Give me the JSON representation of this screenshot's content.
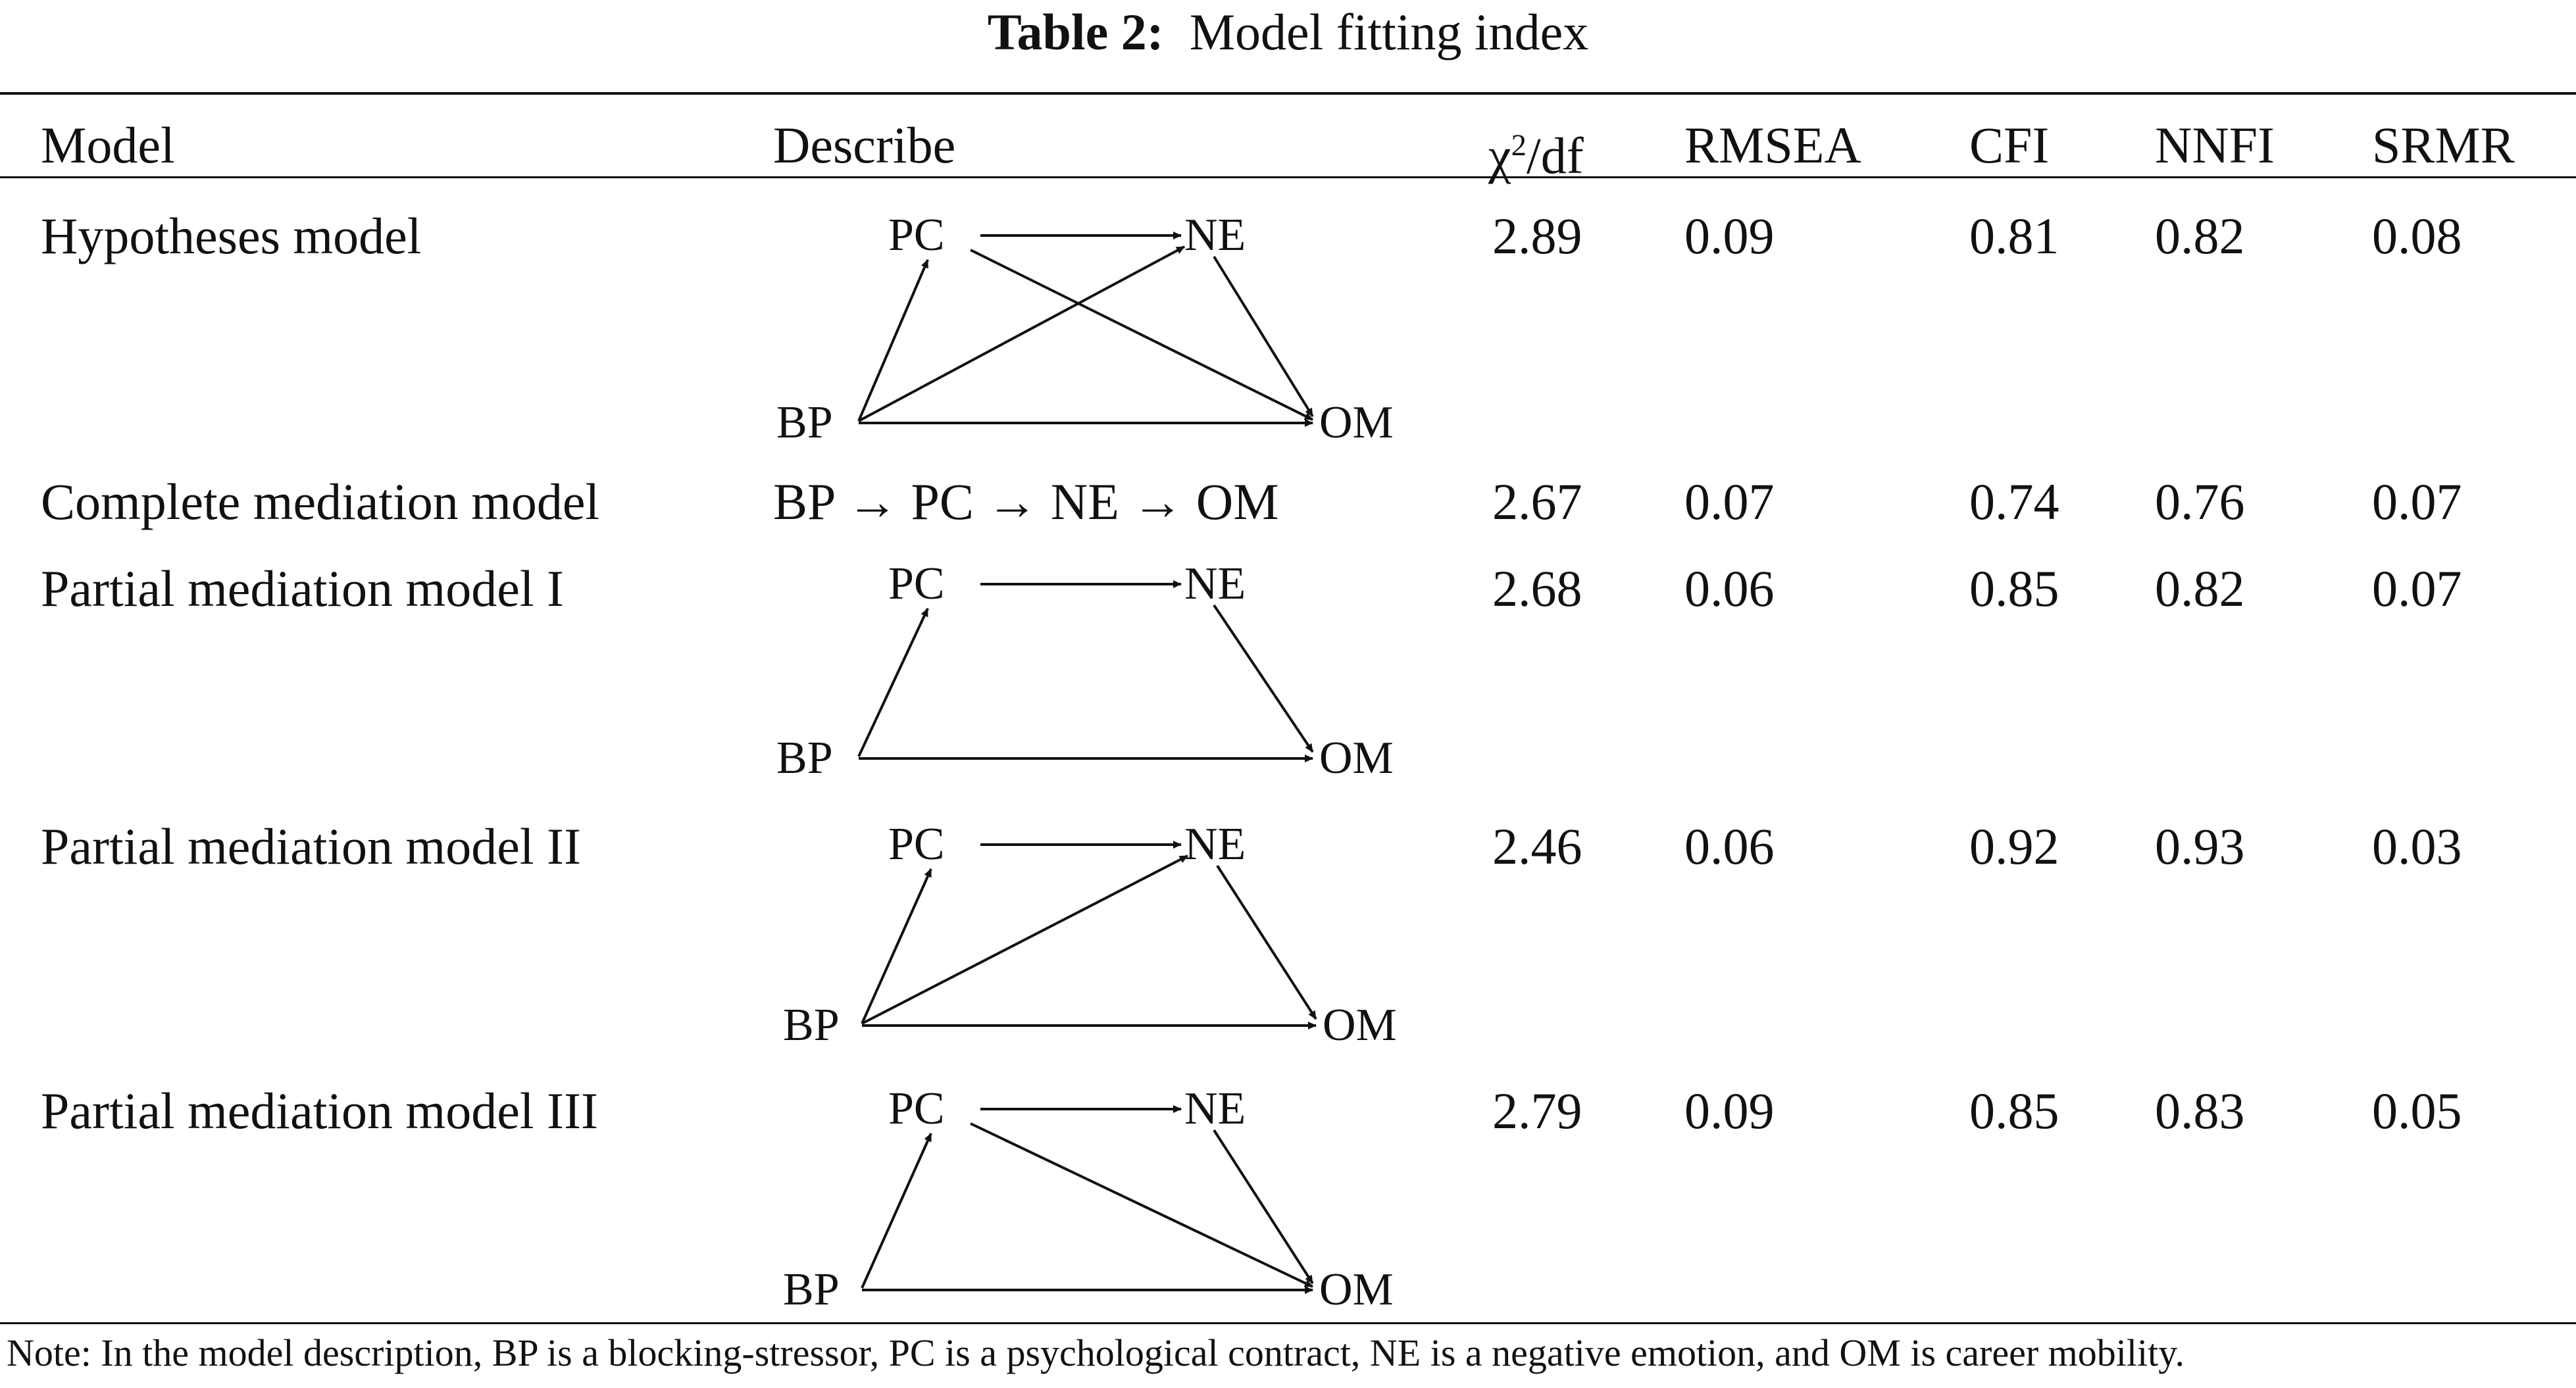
{
  "table": {
    "label": "Table 2:",
    "caption": "Model fitting index",
    "headers": {
      "model": "Model",
      "describe": "Describe",
      "chi_base": "χ",
      "chi_sup": "2",
      "chi_rest": "/df",
      "rmsea": "RMSEA",
      "cfi": "CFI",
      "nnfi": "NNFI",
      "srmr": "SRMR"
    },
    "rows": [
      {
        "model": "Hypotheses model",
        "chi_df": "2.89",
        "rmsea": "0.09",
        "cfi": "0.81",
        "nnfi": "0.82",
        "srmr": "0.08"
      },
      {
        "model": "Complete mediation model",
        "describe": "BP → PC → NE → OM",
        "chi_df": "2.67",
        "rmsea": "0.07",
        "cfi": "0.74",
        "nnfi": "0.76",
        "srmr": "0.07"
      },
      {
        "model": "Partial mediation model I",
        "chi_df": "2.68",
        "rmsea": "0.06",
        "cfi": "0.85",
        "nnfi": "0.82",
        "srmr": "0.07"
      },
      {
        "model": "Partial mediation model II",
        "chi_df": "2.46",
        "rmsea": "0.06",
        "cfi": "0.92",
        "nnfi": "0.93",
        "srmr": "0.03"
      },
      {
        "model": "Partial mediation model III",
        "chi_df": "2.79",
        "rmsea": "0.09",
        "cfi": "0.85",
        "nnfi": "0.83",
        "srmr": "0.05"
      }
    ],
    "nodes": {
      "bp": "BP",
      "pc": "PC",
      "ne": "NE",
      "om": "OM"
    },
    "note": "Note: In the model description, BP is a blocking-stressor, PC is a psychological contract, NE is a negative emotion, and OM is career mobility."
  }
}
